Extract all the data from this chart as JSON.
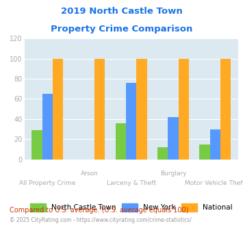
{
  "title_line1": "2019 North Castle Town",
  "title_line2": "Property Crime Comparison",
  "categories": [
    "All Property Crime",
    "Arson",
    "Larceny & Theft",
    "Burglary",
    "Motor Vehicle Theft"
  ],
  "x_labels_top": [
    "",
    "Arson",
    "",
    "Burglary",
    ""
  ],
  "x_labels_bottom": [
    "All Property Crime",
    "",
    "Larceny & Theft",
    "",
    "Motor Vehicle Theft"
  ],
  "north_castle": [
    29,
    0,
    36,
    12,
    15
  ],
  "new_york": [
    65,
    0,
    76,
    42,
    30
  ],
  "national": [
    100,
    100,
    100,
    100,
    100
  ],
  "bar_colors": [
    "#77cc44",
    "#5599ff",
    "#ffaa22"
  ],
  "legend_labels": [
    "North Castle Town",
    "New York",
    "National"
  ],
  "ylim": [
    0,
    120
  ],
  "yticks": [
    0,
    20,
    40,
    60,
    80,
    100,
    120
  ],
  "footnote1": "Compared to U.S. average. (U.S. average equals 100)",
  "footnote2": "© 2025 CityRating.com - https://www.cityrating.com/crime-statistics/",
  "title_color": "#1a73e8",
  "footnote1_color": "#cc3300",
  "footnote2_color": "#999999",
  "bg_color": "#ffffff",
  "plot_bg_color": "#dce9f0",
  "xlabel_color": "#aaaaaa"
}
